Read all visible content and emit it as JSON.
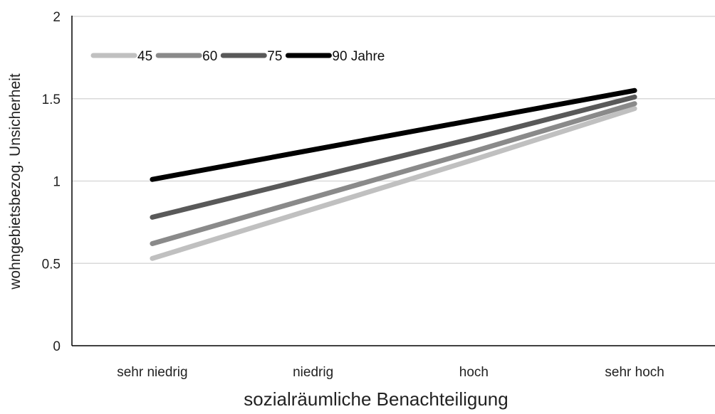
{
  "chart_data": {
    "type": "line",
    "categories": [
      "sehr niedrig",
      "niedrig",
      "hoch",
      "sehr hoch"
    ],
    "xlabel": "sozialräumliche Benachteiligung",
    "ylabel": "wohngebietsbezog. Unsicherheit",
    "ylim": [
      0,
      2
    ],
    "yticks": [
      "0",
      "0.5",
      "1",
      "1.5",
      "2"
    ],
    "grid": true,
    "legend_position": "top-left",
    "series": [
      {
        "name": "45",
        "color": "#c0c0c0",
        "values": [
          0.53,
          0.83,
          1.13,
          1.44
        ]
      },
      {
        "name": "60",
        "color": "#8a8a8a",
        "values": [
          0.62,
          0.9,
          1.18,
          1.47
        ]
      },
      {
        "name": "75",
        "color": "#595959",
        "values": [
          0.78,
          1.02,
          1.26,
          1.51
        ]
      },
      {
        "name": "90 Jahre",
        "color": "#000000",
        "values": [
          1.01,
          1.19,
          1.37,
          1.55
        ]
      }
    ]
  }
}
